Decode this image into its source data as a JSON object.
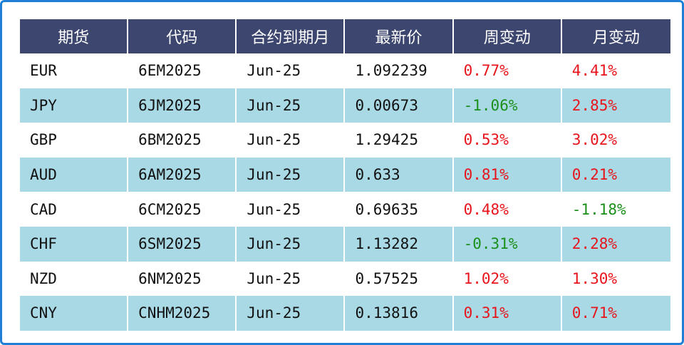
{
  "table": {
    "headers": [
      "期货",
      "代码",
      "合约到期月",
      "最新价",
      "周变动",
      "月变动"
    ],
    "rows": [
      {
        "currency": "EUR",
        "code": "6EM2025",
        "expiry": "Jun-25",
        "price": "1.092239",
        "week": "0.77%",
        "month": "4.41%"
      },
      {
        "currency": "JPY",
        "code": "6JM2025",
        "expiry": "Jun-25",
        "price": "0.00673",
        "week": "-1.06%",
        "month": "2.85%"
      },
      {
        "currency": "GBP",
        "code": "6BM2025",
        "expiry": "Jun-25",
        "price": "1.29425",
        "week": "0.53%",
        "month": "3.02%"
      },
      {
        "currency": "AUD",
        "code": "6AM2025",
        "expiry": "Jun-25",
        "price": "0.633",
        "week": "0.81%",
        "month": "0.21%"
      },
      {
        "currency": "CAD",
        "code": "6CM2025",
        "expiry": "Jun-25",
        "price": "0.69635",
        "week": "0.48%",
        "month": "-1.18%"
      },
      {
        "currency": "CHF",
        "code": "6SM2025",
        "expiry": "Jun-25",
        "price": "1.13282",
        "week": "-0.31%",
        "month": "2.28%"
      },
      {
        "currency": "NZD",
        "code": "6NM2025",
        "expiry": "Jun-25",
        "price": "0.57525",
        "week": "1.02%",
        "month": "1.30%"
      },
      {
        "currency": "CNY",
        "code": "CNHM2025",
        "expiry": "Jun-25",
        "price": "0.13816",
        "week": "0.31%",
        "month": "0.71%"
      }
    ]
  },
  "colors": {
    "header_bg": "#3c466f",
    "stripe_bg": "#a9d9e5",
    "positive": "#e8141b",
    "negative": "#1a8f1a",
    "frame": "#1f7fd6"
  }
}
